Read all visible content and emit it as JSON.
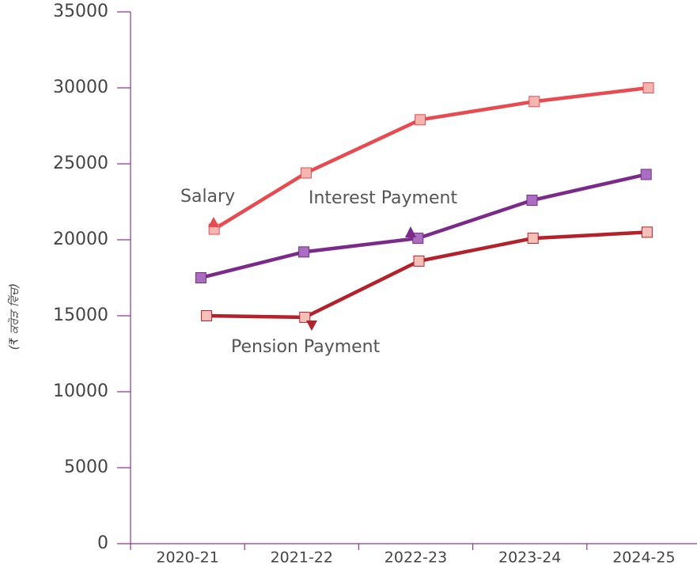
{
  "chart_data": {
    "type": "line",
    "y_label": "(₹ ਕਰੋੜ ਵਿੱਚ)",
    "categories": [
      "2020-21",
      "2021-22",
      "2022-23",
      "2023-24",
      "2024-25"
    ],
    "series": [
      {
        "name": "Salary",
        "color": "#e84a4f",
        "values": [
          20700,
          24400,
          27900,
          29100,
          30000
        ]
      },
      {
        "name": "Interest Payment",
        "color": "#7b2a8a",
        "values": [
          17500,
          19200,
          20100,
          22600,
          24300
        ]
      },
      {
        "name": "Pension Payment",
        "color": "#b4212a",
        "values": [
          15000,
          14900,
          18600,
          20100,
          20500
        ]
      }
    ],
    "ylim": [
      0,
      35000
    ],
    "yticks": [
      0,
      5000,
      10000,
      15000,
      20000,
      25000,
      30000,
      35000
    ]
  }
}
